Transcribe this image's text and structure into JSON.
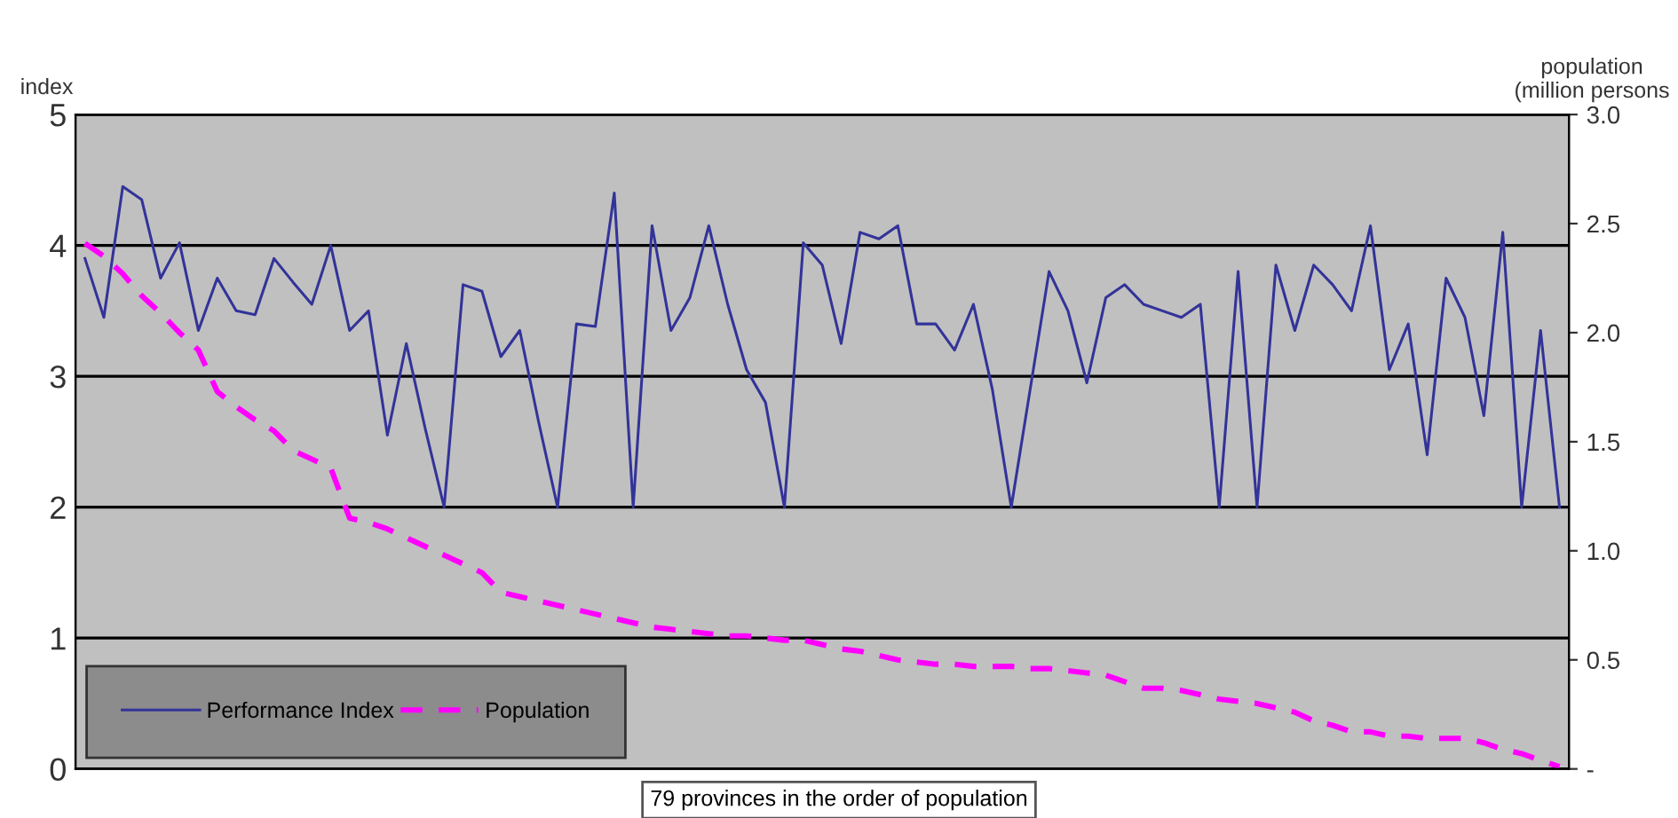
{
  "chart_data": {
    "type": "line",
    "ylabel": "index",
    "y2label": "population\n(million persons",
    "xlabel": "79 provinces in the order of population",
    "categories": [
      null,
      null,
      null,
      null,
      null,
      null,
      null,
      null,
      null,
      null,
      null,
      null,
      null,
      null,
      null,
      null,
      null,
      null,
      null,
      null,
      null,
      null,
      null,
      null,
      null,
      null,
      null,
      null,
      null,
      null,
      null,
      null,
      null,
      null,
      null,
      null,
      null,
      null,
      null,
      null,
      null,
      null,
      null,
      null,
      null,
      null,
      null,
      null,
      null,
      null,
      null,
      null,
      null,
      null,
      null,
      null,
      null,
      null,
      null,
      null,
      null,
      null,
      null,
      null,
      null,
      null,
      null,
      null,
      null,
      null,
      null,
      null,
      null,
      null,
      null,
      null,
      null,
      null,
      null
    ],
    "series": [
      {
        "name": "Performance Index",
        "color": "#333399",
        "line_style": "solid",
        "values": [
          3.9,
          3.45,
          4.45,
          4.35,
          3.75,
          4.02,
          3.35,
          3.75,
          3.5,
          3.47,
          3.9,
          3.72,
          3.55,
          4.0,
          3.35,
          3.5,
          2.55,
          3.25,
          2.6,
          2.0,
          3.7,
          3.65,
          3.15,
          3.35,
          2.65,
          2.0,
          3.4,
          3.38,
          4.4,
          2.0,
          4.15,
          3.35,
          3.6,
          4.15,
          3.55,
          3.05,
          2.8,
          2.0,
          4.02,
          3.85,
          3.25,
          4.1,
          4.05,
          4.15,
          3.4,
          3.4,
          3.2,
          3.55,
          2.9,
          2.0,
          2.9,
          3.8,
          3.5,
          2.95,
          3.6,
          3.7,
          3.55,
          3.5,
          3.45,
          3.55,
          2.0,
          3.8,
          2.0,
          3.85,
          3.35,
          3.85,
          3.7,
          3.5,
          4.15,
          3.05,
          3.4,
          2.4,
          3.75,
          3.45,
          2.7,
          4.1,
          2.0,
          3.35,
          2.0
        ]
      },
      {
        "name": "Population",
        "color": "#ff00ff",
        "line_style": "dashed",
        "axis": "y2",
        "values": [
          2.41,
          2.35,
          2.27,
          2.17,
          2.09,
          2.0,
          1.92,
          1.73,
          1.66,
          1.6,
          1.55,
          1.46,
          1.42,
          1.38,
          1.15,
          1.13,
          1.1,
          1.06,
          1.02,
          0.98,
          0.94,
          0.9,
          0.81,
          0.79,
          0.77,
          0.75,
          0.73,
          0.71,
          0.69,
          0.67,
          0.65,
          0.64,
          0.63,
          0.62,
          0.61,
          0.61,
          0.6,
          0.59,
          0.59,
          0.57,
          0.55,
          0.54,
          0.52,
          0.5,
          0.49,
          0.48,
          0.48,
          0.47,
          0.47,
          0.47,
          0.46,
          0.46,
          0.45,
          0.44,
          0.43,
          0.4,
          0.37,
          0.37,
          0.36,
          0.34,
          0.32,
          0.31,
          0.3,
          0.28,
          0.26,
          0.22,
          0.2,
          0.17,
          0.17,
          0.15,
          0.15,
          0.14,
          0.14,
          0.14,
          0.12,
          0.09,
          0.07,
          0.04,
          0.01
        ]
      }
    ],
    "ylim": [
      0,
      5
    ],
    "yticks": [
      0,
      1,
      2,
      3,
      4,
      5
    ],
    "y2lim": [
      0,
      3.0
    ],
    "y2ticks": [
      {
        "value": 0,
        "label": "-"
      },
      {
        "value": 0.5,
        "label": "0.5"
      },
      {
        "value": 1.0,
        "label": "1.0"
      },
      {
        "value": 1.5,
        "label": "1.5"
      },
      {
        "value": 2.0,
        "label": "2.0"
      },
      {
        "value": 2.5,
        "label": "2.5"
      },
      {
        "value": 3.0,
        "label": "3.0"
      }
    ],
    "grid": "y",
    "legend": "bottom left",
    "marker": "none"
  }
}
